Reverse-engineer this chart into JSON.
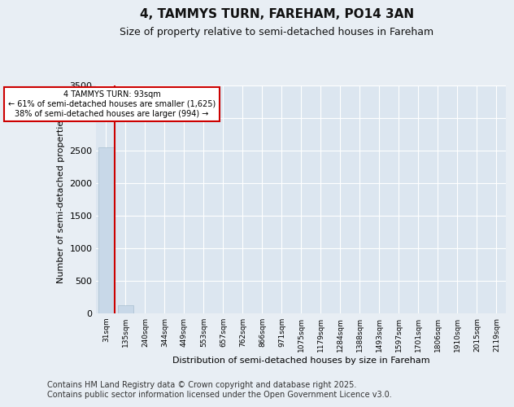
{
  "title": "4, TAMMYS TURN, FAREHAM, PO14 3AN",
  "subtitle": "Size of property relative to semi-detached houses in Fareham",
  "xlabel": "Distribution of semi-detached houses by size in Fareham",
  "ylabel": "Number of semi-detached properties",
  "categories": [
    "31sqm",
    "135sqm",
    "240sqm",
    "344sqm",
    "449sqm",
    "553sqm",
    "657sqm",
    "762sqm",
    "866sqm",
    "971sqm",
    "1075sqm",
    "1179sqm",
    "1284sqm",
    "1388sqm",
    "1493sqm",
    "1597sqm",
    "1701sqm",
    "1806sqm",
    "1910sqm",
    "2015sqm",
    "2119sqm"
  ],
  "values": [
    2550,
    130,
    0,
    0,
    0,
    0,
    0,
    0,
    0,
    0,
    0,
    0,
    0,
    0,
    0,
    0,
    0,
    0,
    0,
    0,
    0
  ],
  "bar_color": "#c8d8e8",
  "bar_edge_color": "#a8bfd0",
  "property_line_color": "#cc0000",
  "annotation_line1": "4 TAMMYS TURN: 93sqm",
  "annotation_line2": "← 61% of semi-detached houses are smaller (1,625)",
  "annotation_line3": "38% of semi-detached houses are larger (994) →",
  "annotation_box_color": "#ffffff",
  "annotation_box_edge": "#cc0000",
  "ylim": [
    0,
    3500
  ],
  "yticks": [
    0,
    500,
    1000,
    1500,
    2000,
    2500,
    3000,
    3500
  ],
  "background_color": "#e8eef4",
  "plot_background_color": "#dce6f0",
  "grid_color": "#ffffff",
  "footer_line1": "Contains HM Land Registry data © Crown copyright and database right 2025.",
  "footer_line2": "Contains public sector information licensed under the Open Government Licence v3.0.",
  "title_fontsize": 11,
  "subtitle_fontsize": 9,
  "footer_fontsize": 7
}
